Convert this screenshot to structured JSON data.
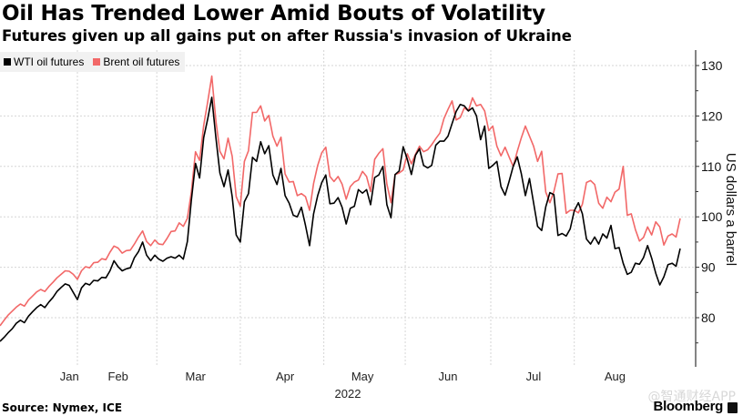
{
  "header": {
    "title": "Oil Has Trended Lower Amid Bouts of Volatility",
    "subtitle": "Futures given up all gains put on after Russia's invasion of Ukraine"
  },
  "footer": {
    "source": "Source: Nymex, ICE",
    "brand": "Bloomberg",
    "watermark": "@智通财经APP"
  },
  "chart_data": {
    "type": "line",
    "title": "Oil Has Trended Lower Amid Bouts of Volatility",
    "subtitle": "Futures given up all gains put on after Russia's invasion of Ukraine",
    "xlabel": "2022",
    "ylabel": "US dollars a barrel",
    "x_tick_labels": [
      "Jan",
      "Feb",
      "Mar",
      "Apr",
      "May",
      "Jun",
      "Jul",
      "Aug"
    ],
    "x_tick_positions": [
      9,
      29,
      48,
      70,
      89,
      110,
      131,
      151
    ],
    "x_range": [
      0,
      158
    ],
    "ylim": [
      71,
      133
    ],
    "y_ticks": [
      80,
      90,
      100,
      110,
      120,
      130
    ],
    "grid": true,
    "legend_position": "top-left",
    "axis_position": "right",
    "series": [
      {
        "name": "WTI oil futures",
        "color": "#000000",
        "values": [
          75.3,
          76.1,
          77.0,
          77.8,
          78.9,
          79.5,
          79.0,
          80.3,
          81.2,
          82.0,
          82.6,
          82.0,
          83.1,
          84.0,
          85.2,
          86.0,
          86.7,
          86.4,
          85.0,
          83.6,
          85.9,
          86.8,
          86.5,
          87.4,
          87.3,
          88.0,
          87.9,
          89.3,
          91.3,
          90.1,
          89.3,
          89.7,
          89.9,
          91.9,
          93.1,
          95.0,
          92.4,
          91.3,
          92.4,
          91.6,
          91.2,
          91.8,
          92.1,
          91.8,
          92.4,
          91.6,
          95.1,
          103.4,
          110.6,
          107.7,
          115.7,
          119.4,
          123.7,
          115.7,
          108.7,
          106.0,
          109.3,
          104.0,
          96.4,
          95.0,
          103.0,
          104.6,
          111.8,
          111.0,
          114.9,
          112.5,
          114.1,
          108.3,
          106.4,
          109.6,
          104.2,
          102.7,
          100.3,
          100.0,
          101.9,
          98.3,
          94.3,
          100.6,
          104.2,
          106.8,
          108.3,
          102.6,
          102.7,
          103.8,
          101.9,
          98.6,
          101.7,
          102.1,
          105.4,
          104.7,
          105.4,
          102.4,
          107.8,
          108.3,
          110.0,
          102.4,
          99.8,
          108.4,
          109.1,
          113.9,
          111.4,
          108.4,
          112.2,
          113.5,
          110.2,
          109.7,
          110.2,
          114.2,
          115.0,
          115.0,
          116.0,
          118.5,
          120.9,
          122.3,
          122.0,
          121.0,
          121.6,
          120.0,
          115.3,
          118.0,
          109.6,
          110.2,
          111.0,
          106.0,
          104.3,
          107.0,
          110.0,
          111.9,
          108.5,
          104.2,
          107.6,
          102.8,
          98.1,
          97.3,
          102.0,
          104.8,
          104.4,
          96.3,
          96.7,
          96.2,
          97.6,
          101.2,
          102.8,
          100.6,
          95.6,
          94.6,
          96.0,
          94.6,
          96.6,
          95.8,
          98.3,
          93.7,
          93.9,
          90.8,
          88.6,
          89.0,
          90.8,
          90.6,
          91.9,
          94.3,
          91.8,
          88.8,
          86.5,
          88.1,
          90.5,
          90.8,
          90.2,
          93.7
        ]
      },
      {
        "name": "Brent oil futures",
        "color": "#f26868",
        "values": [
          78.4,
          79.5,
          80.5,
          81.3,
          82.1,
          82.7,
          82.3,
          83.5,
          84.3,
          85.1,
          85.6,
          85.2,
          86.2,
          87.0,
          87.9,
          88.6,
          89.3,
          89.2,
          88.6,
          87.6,
          89.3,
          90.1,
          89.9,
          90.9,
          91.0,
          91.7,
          91.5,
          93.0,
          94.2,
          93.8,
          92.8,
          93.3,
          93.4,
          94.6,
          96.0,
          97.2,
          95.1,
          94.3,
          95.4,
          94.6,
          94.5,
          95.7,
          97.1,
          97.2,
          98.8,
          98.1,
          99.7,
          105.0,
          112.9,
          111.2,
          118.1,
          122.8,
          127.9,
          119.0,
          113.0,
          111.5,
          115.6,
          112.0,
          104.0,
          102.1,
          111.0,
          113.1,
          120.7,
          120.7,
          122.0,
          119.0,
          120.1,
          116.0,
          114.0,
          115.8,
          108.5,
          106.9,
          107.0,
          104.2,
          104.6,
          104.0,
          101.3,
          106.6,
          110.2,
          112.7,
          113.8,
          108.0,
          107.0,
          108.0,
          106.5,
          103.5,
          106.0,
          106.9,
          107.3,
          109.0,
          108.0,
          105.0,
          111.4,
          112.6,
          113.5,
          106.5,
          102.8,
          108.4,
          108.7,
          109.3,
          112.5,
          110.5,
          112.4,
          114.0,
          112.9,
          113.3,
          114.3,
          115.5,
          116.6,
          119.5,
          121.3,
          123.0,
          119.2,
          119.7,
          121.6,
          121.0,
          123.6,
          122.0,
          122.3,
          121.0,
          117.1,
          118.0,
          114.0,
          112.1,
          113.8,
          111.9,
          110.0,
          113.0,
          115.7,
          118.0,
          116.0,
          114.0,
          111.0,
          113.0,
          104.9,
          102.8,
          105.0,
          108.5,
          108.6,
          100.7,
          101.3,
          101.3,
          100.8,
          102.5,
          106.8,
          107.2,
          106.4,
          102.7,
          101.7,
          103.9,
          103.0,
          104.9,
          105.5,
          110.0,
          100.3,
          100.6,
          97.5,
          95.2,
          95.9,
          98.0,
          96.4,
          99.0,
          98.0,
          94.4,
          96.2,
          96.6,
          96.0,
          99.7
        ]
      }
    ]
  }
}
